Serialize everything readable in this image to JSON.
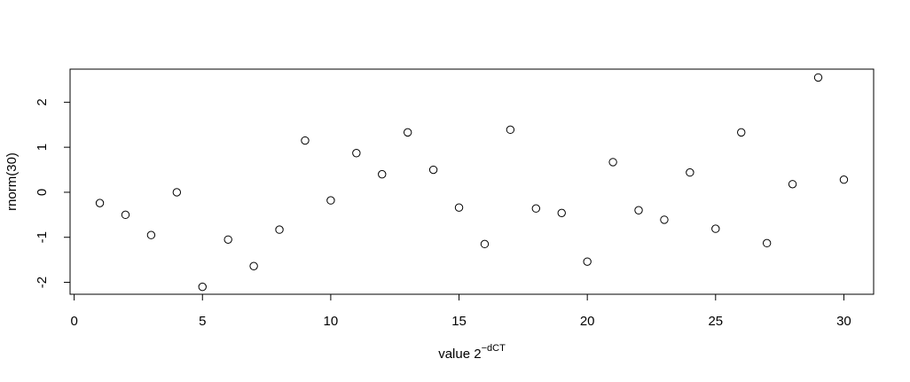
{
  "chart_data": {
    "type": "scatter",
    "x_label": {
      "base": "value 2",
      "superscript": "−dCT"
    },
    "y_label": "rnorm(30)",
    "x": [
      1,
      2,
      3,
      4,
      5,
      6,
      7,
      8,
      9,
      10,
      11,
      12,
      13,
      14,
      15,
      16,
      17,
      18,
      19,
      20,
      21,
      22,
      23,
      24,
      25,
      26,
      27,
      28,
      29,
      30
    ],
    "values": [
      -0.24,
      -0.5,
      -0.95,
      0.0,
      -2.1,
      -1.05,
      -1.64,
      -0.83,
      1.15,
      -0.18,
      0.87,
      0.4,
      1.33,
      0.5,
      -0.34,
      -1.15,
      1.39,
      -0.36,
      -0.46,
      -1.54,
      0.67,
      -0.4,
      -0.61,
      0.44,
      -0.81,
      1.33,
      -1.13,
      0.18,
      2.55,
      0.28
    ],
    "color": "#000000",
    "xlim": [
      -0.16,
      31.16
    ],
    "xticks": [
      0,
      5,
      10,
      15,
      20,
      25,
      30
    ],
    "ylim": [
      -2.265,
      2.735
    ],
    "yticks": [
      -2,
      -1,
      0,
      1,
      2
    ]
  }
}
